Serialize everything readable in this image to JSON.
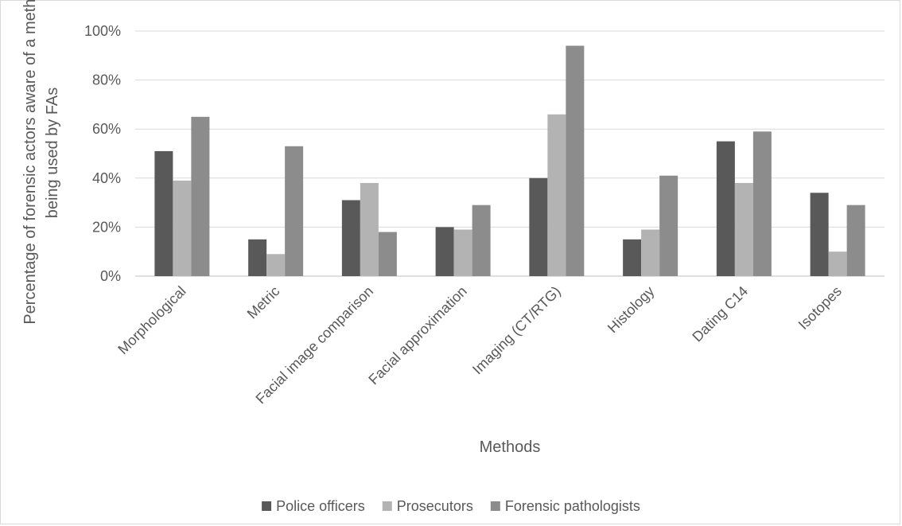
{
  "chart_data": {
    "type": "bar",
    "title": "",
    "xlabel": "Methods",
    "ylabel_lines": [
      "Percentage of forensic actors aware of a method",
      "being used by FAs"
    ],
    "ylim": [
      0,
      100
    ],
    "yticks": [
      0,
      20,
      40,
      60,
      80,
      100
    ],
    "ytick_labels": [
      "0%",
      "20%",
      "40%",
      "60%",
      "80%",
      "100%"
    ],
    "grid": true,
    "legend_position": "bottom",
    "categories": [
      "Morphological",
      "Metric",
      "Facial image comparison",
      "Facial approximation",
      "Imaging (CT/RTG)",
      "Histology",
      "Dating C14",
      "Isotopes"
    ],
    "series": [
      {
        "name": "Police officers",
        "color": "#595959",
        "values": [
          51,
          15,
          31,
          20,
          40,
          15,
          55,
          34
        ]
      },
      {
        "name": "Prosecutors",
        "color": "#b3b3b3",
        "values": [
          39,
          9,
          38,
          19,
          66,
          19,
          38,
          10
        ]
      },
      {
        "name": "Forensic pathologists",
        "color": "#8c8c8c",
        "values": [
          65,
          53,
          18,
          29,
          94,
          41,
          59,
          29
        ]
      }
    ]
  }
}
